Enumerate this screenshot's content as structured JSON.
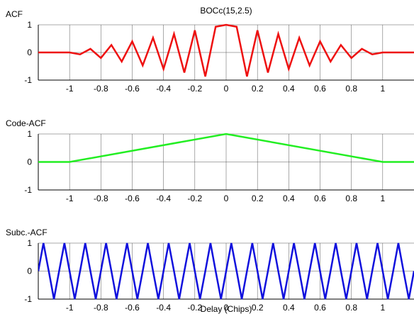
{
  "chart_data": [
    {
      "type": "line",
      "title": "BOCc(15,2.5)",
      "ylabel": "ACF",
      "xlabel": "",
      "xlim": [
        -1.2,
        1.2
      ],
      "ylim": [
        -1,
        1
      ],
      "xticks": [
        -1,
        -0.8,
        -0.6,
        -0.4,
        -0.2,
        0,
        0.2,
        0.4,
        0.6,
        0.8,
        1
      ],
      "xtick_labels": [
        "-1",
        "-0.8",
        "-0.6",
        "-0.4",
        "-0.2",
        "0",
        "0.2",
        "0.4",
        "0.6",
        "0.8",
        "1"
      ],
      "yticks": [
        -1,
        0,
        1
      ],
      "ytick_labels": [
        "-1",
        "0",
        "1"
      ],
      "grid": true,
      "color": "#ee1111",
      "series": [
        {
          "x": [
            -1.2,
            -1.067,
            -1.0,
            -0.933,
            -0.867,
            -0.8,
            -0.733,
            -0.667,
            -0.6,
            -0.533,
            -0.467,
            -0.4,
            -0.333,
            -0.267,
            -0.2,
            -0.133,
            -0.067,
            0,
            0.067,
            0.133,
            0.2,
            0.267,
            0.333,
            0.4,
            0.467,
            0.533,
            0.6,
            0.667,
            0.733,
            0.8,
            0.867,
            0.933,
            1.0,
            1.067,
            1.2
          ],
          "y": [
            0,
            0,
            0,
            -0.07,
            0.13,
            -0.2,
            0.27,
            -0.33,
            0.4,
            -0.47,
            0.53,
            -0.6,
            0.67,
            -0.73,
            0.8,
            -0.87,
            0.93,
            1.0,
            0.93,
            -0.87,
            0.8,
            -0.73,
            0.67,
            -0.6,
            0.53,
            -0.47,
            0.4,
            -0.33,
            0.27,
            -0.2,
            0.13,
            -0.07,
            0,
            0,
            0
          ]
        }
      ]
    },
    {
      "type": "line",
      "title": "",
      "ylabel": "Code-ACF",
      "xlabel": "",
      "xlim": [
        -1.2,
        1.2
      ],
      "ylim": [
        -1,
        1
      ],
      "xticks": [
        -1,
        -0.8,
        -0.6,
        -0.4,
        -0.2,
        0,
        0.2,
        0.4,
        0.6,
        0.8,
        1
      ],
      "xtick_labels": [
        "-1",
        "-0.8",
        "-0.6",
        "-0.4",
        "-0.2",
        "0",
        "0.2",
        "0.4",
        "0.6",
        "0.8",
        "1"
      ],
      "yticks": [
        -1,
        0,
        1
      ],
      "ytick_labels": [
        "-1",
        "0",
        "1"
      ],
      "grid": true,
      "color": "#22ee22",
      "series": [
        {
          "x": [
            -1.2,
            -1.0,
            0,
            1.0,
            1.2
          ],
          "y": [
            0,
            0,
            1,
            0,
            0
          ]
        }
      ]
    },
    {
      "type": "line",
      "title": "",
      "ylabel": "Subc.-ACF",
      "xlabel": "Delay (Chips)",
      "xlim": [
        -1.2,
        1.2
      ],
      "ylim": [
        -1,
        1
      ],
      "xticks": [
        -1,
        -0.8,
        -0.6,
        -0.4,
        -0.2,
        0,
        0.2,
        0.4,
        0.6,
        0.8,
        1
      ],
      "xtick_labels": [
        "-1",
        "-0.8",
        "-0.6",
        "-0.4",
        "-0.2",
        "0",
        "0.2",
        "0.4",
        "0.6",
        "0.8",
        "1"
      ],
      "yticks": [
        -1,
        0,
        1
      ],
      "ytick_labels": [
        "-1",
        "0",
        "1"
      ],
      "grid": true,
      "color": "#1111dd",
      "series": [
        {
          "x": [
            -1.2,
            -1.167,
            -1.133,
            -1.1,
            -1.067,
            -1.033,
            -1.0,
            -0.967,
            -0.933,
            -0.9,
            -0.867,
            -0.833,
            -0.8,
            -0.767,
            -0.733,
            -0.7,
            -0.667,
            -0.633,
            -0.6,
            -0.567,
            -0.533,
            -0.5,
            -0.467,
            -0.433,
            -0.4,
            -0.367,
            -0.333,
            -0.3,
            -0.267,
            -0.233,
            -0.2,
            -0.167,
            -0.133,
            -0.1,
            -0.067,
            -0.033,
            0,
            0.033,
            0.067,
            0.1,
            0.133,
            0.167,
            0.2,
            0.233,
            0.267,
            0.3,
            0.333,
            0.367,
            0.4,
            0.433,
            0.467,
            0.5,
            0.533,
            0.567,
            0.6,
            0.633,
            0.667,
            0.7,
            0.733,
            0.767,
            0.8,
            0.833,
            0.867,
            0.9,
            0.933,
            0.967,
            1.0,
            1.033,
            1.067,
            1.1,
            1.133,
            1.167,
            1.2
          ],
          "y": [
            0,
            1,
            0,
            -1,
            0,
            1,
            0,
            -1,
            0,
            1,
            0,
            -1,
            0,
            1,
            0,
            -1,
            0,
            1,
            0,
            -1,
            0,
            1,
            0,
            -1,
            0,
            1,
            0,
            -1,
            0,
            1,
            0,
            -1,
            0,
            1,
            0,
            -1,
            0,
            1,
            0,
            -1,
            0,
            1,
            0,
            -1,
            0,
            1,
            0,
            -1,
            0,
            1,
            0,
            -1,
            0,
            1,
            0,
            -1,
            0,
            1,
            0,
            -1,
            0,
            1,
            0,
            -1,
            0,
            1,
            0,
            -1,
            0,
            1,
            0,
            -1,
            0
          ]
        }
      ]
    }
  ]
}
